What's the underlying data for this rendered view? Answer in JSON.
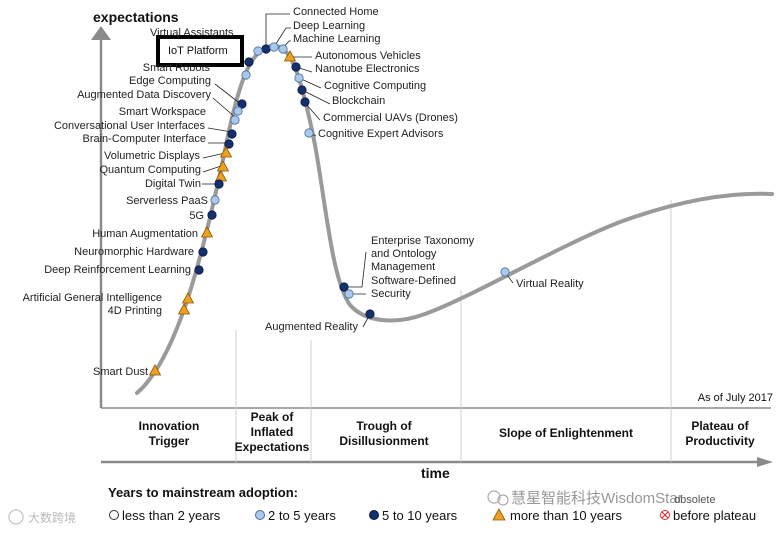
{
  "axes": {
    "y_label": "expectations",
    "x_label": "time"
  },
  "as_of": "As of July 2017",
  "phases": [
    {
      "id": "innovation-trigger",
      "lines": [
        "Innovation",
        "Trigger"
      ]
    },
    {
      "id": "peak-inflated",
      "lines": [
        "Peak of",
        "Inflated",
        "Expectations"
      ]
    },
    {
      "id": "trough",
      "lines": [
        "Trough of",
        "Disillusionment"
      ]
    },
    {
      "id": "slope",
      "lines": [
        "Slope of Enlightenment"
      ]
    },
    {
      "id": "plateau",
      "lines": [
        "Plateau of",
        "Productivity"
      ]
    }
  ],
  "highlight": {
    "label": "IoT Platform"
  },
  "technologies": [
    {
      "name": "Connected Home",
      "marker": "5-10"
    },
    {
      "name": "Deep Learning",
      "marker": "2-5"
    },
    {
      "name": "Machine Learning",
      "marker": "2-5"
    },
    {
      "name": "Virtual Assistants",
      "marker": "2-5"
    },
    {
      "name": "Autonomous Vehicles",
      "marker": "10+"
    },
    {
      "name": "Nanotube Electronics",
      "marker": "5-10"
    },
    {
      "name": "Cognitive Computing",
      "marker": "5-10"
    },
    {
      "name": "Blockchain",
      "marker": "5-10"
    },
    {
      "name": "Commercial UAVs (Drones)",
      "marker": "5-10"
    },
    {
      "name": "Cognitive Expert Advisors",
      "marker": "2-5"
    },
    {
      "name": "Smart Robots",
      "marker": "5-10"
    },
    {
      "name": "Edge Computing",
      "marker": "2-5"
    },
    {
      "name": "Augmented Data Discovery",
      "marker": "5-10"
    },
    {
      "name": "Smart Workspace",
      "marker": "2-5"
    },
    {
      "name": "Conversational User Interfaces",
      "marker": "2-5"
    },
    {
      "name": "Brain-Computer Interface",
      "marker": "5-10"
    },
    {
      "name": "Volumetric Displays",
      "marker": "10+"
    },
    {
      "name": "Quantum Computing",
      "marker": "10+"
    },
    {
      "name": "Digital Twin",
      "marker": "5-10"
    },
    {
      "name": "Serverless PaaS",
      "marker": "2-5"
    },
    {
      "name": "5G",
      "marker": "5-10"
    },
    {
      "name": "Human Augmentation",
      "marker": "10+"
    },
    {
      "name": "Neuromorphic Hardware",
      "marker": "5-10"
    },
    {
      "name": "Deep Reinforcement Learning",
      "marker": "5-10"
    },
    {
      "name": "Artificial General Intelligence",
      "marker": "10+"
    },
    {
      "name": "4D Printing",
      "marker": "10+"
    },
    {
      "name": "Smart Dust",
      "marker": "10+"
    },
    {
      "name": "Enterprise Taxonomy and Ontology Management",
      "marker": "5-10"
    },
    {
      "name": "Software-Defined Security",
      "marker": "2-5"
    },
    {
      "name": "Augmented Reality",
      "marker": "5-10"
    },
    {
      "name": "Virtual Reality",
      "marker": "2-5"
    }
  ],
  "legend": {
    "title": "Years to mainstream adoption:",
    "items": [
      {
        "key": "lt2",
        "label": "less than 2 years"
      },
      {
        "key": "2-5",
        "label": "2 to 5 years"
      },
      {
        "key": "5-10",
        "label": "5 to 10 years"
      },
      {
        "key": "10+",
        "label": "more than 10 years"
      },
      {
        "key": "obsolete",
        "label": "before plateau"
      }
    ],
    "obsolete_prefix": "obsolete"
  },
  "watermarks": {
    "left": "大数跨境",
    "right": "慧星智能科技WisdomStar"
  },
  "colors": {
    "curve": "#9a9a9a",
    "dark": "#14306e",
    "light": "#a9c8ea",
    "orange": "#f0a020",
    "obsolete": "#d03030"
  }
}
